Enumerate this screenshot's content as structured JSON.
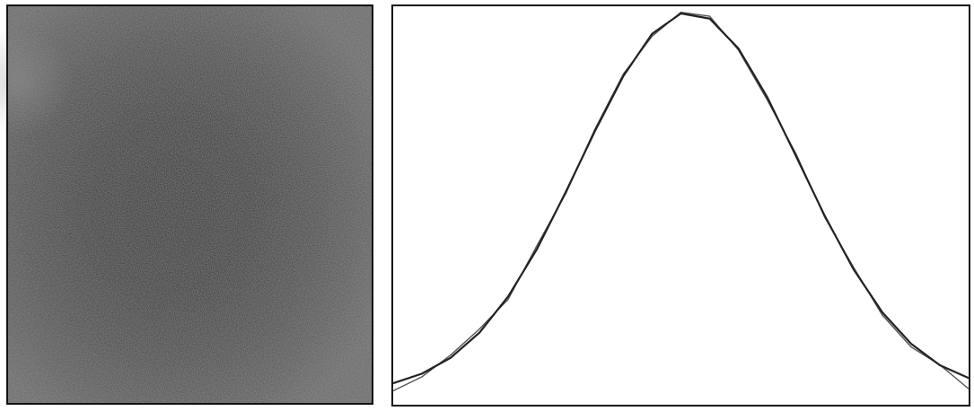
{
  "chart_data": {
    "type": "line",
    "x": [
      0,
      0.05,
      0.1,
      0.15,
      0.2,
      0.25,
      0.3,
      0.35,
      0.4,
      0.45,
      0.5,
      0.55,
      0.6,
      0.65,
      0.7,
      0.75,
      0.8,
      0.85,
      0.9,
      0.95,
      1
    ],
    "xlim": [
      0,
      1
    ],
    "ylim": [
      0,
      1
    ],
    "series": [
      {
        "color": "#555555",
        "values": [
          0.035,
          0.07,
          0.125,
          0.19,
          0.265,
          0.4,
          0.53,
          0.69,
          0.83,
          0.925,
          0.985,
          0.975,
          0.89,
          0.765,
          0.63,
          0.47,
          0.345,
          0.225,
          0.145,
          0.1,
          0.04
        ]
      },
      {
        "color": "#222222",
        "values": [
          0.054,
          0.078,
          0.118,
          0.181,
          0.272,
          0.391,
          0.534,
          0.685,
          0.825,
          0.931,
          0.982,
          0.969,
          0.894,
          0.772,
          0.624,
          0.474,
          0.34,
          0.232,
          0.153,
          0.099,
          0.067
        ]
      }
    ]
  }
}
